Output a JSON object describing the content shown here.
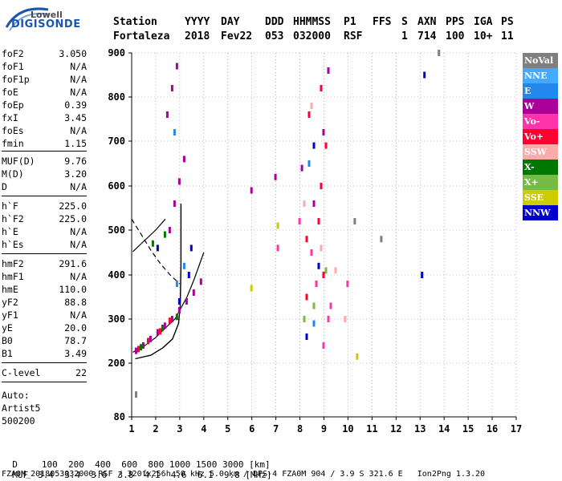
{
  "logo": {
    "brand": "Lowell",
    "product": "DIGISONDE"
  },
  "header": {
    "labels": [
      "Station",
      "YYYY",
      "DAY",
      "DDD",
      "HHMMSS",
      "P1",
      "FFS",
      "S",
      "AXN",
      "PPS",
      "IGA",
      "PS"
    ],
    "values": [
      "Fortaleza",
      "2018",
      "Fev22",
      "053",
      "032000",
      "RSF",
      "",
      "1",
      "714",
      "100",
      "10+",
      "11"
    ]
  },
  "params": {
    "group1": [
      {
        "name": "foF2",
        "value": "3.050"
      },
      {
        "name": "foF1",
        "value": "N/A"
      },
      {
        "name": "foF1p",
        "value": "N/A"
      },
      {
        "name": "foE",
        "value": "N/A"
      },
      {
        "name": "foEp",
        "value": "0.39"
      },
      {
        "name": "fxI",
        "value": "3.45"
      },
      {
        "name": "foEs",
        "value": "N/A"
      },
      {
        "name": "fmin",
        "value": "1.15"
      }
    ],
    "group2": [
      {
        "name": "MUF(D)",
        "value": "9.76"
      },
      {
        "name": "M(D)",
        "value": "3.20"
      },
      {
        "name": "D",
        "value": "N/A"
      }
    ],
    "group3": [
      {
        "name": "h`F",
        "value": "225.0"
      },
      {
        "name": "h`F2",
        "value": "225.0"
      },
      {
        "name": "h`E",
        "value": "N/A"
      },
      {
        "name": "h`Es",
        "value": "N/A"
      }
    ],
    "group4": [
      {
        "name": "hmF2",
        "value": "291.6"
      },
      {
        "name": "hmF1",
        "value": "N/A"
      },
      {
        "name": "hmE",
        "value": "110.0"
      },
      {
        "name": "yF2",
        "value": "88.8"
      },
      {
        "name": "yF1",
        "value": "N/A"
      },
      {
        "name": "yE",
        "value": "20.0"
      },
      {
        "name": "B0",
        "value": "78.7"
      },
      {
        "name": "B1",
        "value": "3.49"
      }
    ],
    "group5": [
      {
        "name": "C-level",
        "value": "22"
      }
    ]
  },
  "auto": {
    "line1": "Auto:",
    "line2": "Artist5",
    "line3": "500200"
  },
  "legend": [
    {
      "label": "NoVal",
      "color": "#7f7f7f"
    },
    {
      "label": "NNE",
      "color": "#44aaff"
    },
    {
      "label": "E",
      "color": "#2288ee"
    },
    {
      "label": "W",
      "color": "#aa0099"
    },
    {
      "label": "Vo-",
      "color": "#ff33aa"
    },
    {
      "label": "Vo+",
      "color": "#ff0033"
    },
    {
      "label": "SSW",
      "color": "#ffaaaa"
    },
    {
      "label": "X-",
      "color": "#007700"
    },
    {
      "label": "X+",
      "color": "#77bb44"
    },
    {
      "label": "SSE",
      "color": "#cccc00"
    },
    {
      "label": "NNW",
      "color": "#0000cc"
    }
  ],
  "bottom": {
    "d_label": "D",
    "d_values": "100  200  400  600  800 1000 1500 3000 [km]",
    "muf_label": "MUF",
    "muf_values": "3.4  3.4  3.6  3.8  4.1  4.6  6.1  9.8 [MHz]",
    "footer": "FZA0M_2018053032000.RSF / 320fx256h 50 kHz 5.0 km / DPS-4 FZA0M 904 / 3.9 S 321.6 E   Ion2Png 1.3.20"
  },
  "chart_data": {
    "type": "scatter",
    "xlim": [
      1,
      17
    ],
    "ylim": [
      80,
      900
    ],
    "x_ticks": [
      "1",
      "2",
      "3",
      "4",
      "5",
      "6",
      "7",
      "8",
      "9",
      "10",
      "11",
      "12",
      "13",
      "14",
      "15",
      "16",
      "17"
    ],
    "y_ticks": [
      "80",
      "200",
      "300",
      "400",
      "500",
      "600",
      "700",
      "800",
      "900"
    ],
    "grid": true,
    "series": [
      {
        "name": "W",
        "color": "#aa0099",
        "points": [
          [
            1.2,
            228
          ],
          [
            1.5,
            240
          ],
          [
            1.8,
            255
          ],
          [
            2.1,
            270
          ],
          [
            2.4,
            285
          ],
          [
            2.7,
            300
          ],
          [
            3.0,
            320
          ],
          [
            3.3,
            340
          ],
          [
            3.6,
            360
          ],
          [
            3.9,
            385
          ],
          [
            2.6,
            500
          ],
          [
            2.8,
            560
          ],
          [
            3.0,
            610
          ],
          [
            3.2,
            660
          ],
          [
            2.5,
            760
          ],
          [
            2.7,
            820
          ],
          [
            2.9,
            870
          ],
          [
            6.0,
            590
          ],
          [
            7.0,
            620
          ],
          [
            8.1,
            640
          ],
          [
            8.6,
            560
          ],
          [
            9.0,
            720
          ],
          [
            9.2,
            860
          ]
        ]
      },
      {
        "name": "Vo+",
        "color": "#ff0033",
        "points": [
          [
            1.3,
            232
          ],
          [
            1.7,
            250
          ],
          [
            2.2,
            272
          ],
          [
            2.6,
            296
          ],
          [
            8.3,
            480
          ],
          [
            8.8,
            520
          ],
          [
            8.9,
            600
          ],
          [
            9.1,
            690
          ],
          [
            8.4,
            760
          ],
          [
            8.9,
            820
          ],
          [
            9.0,
            400
          ],
          [
            8.3,
            350
          ]
        ]
      },
      {
        "name": "Vo-",
        "color": "#ff33aa",
        "points": [
          [
            7.1,
            460
          ],
          [
            8.0,
            520
          ],
          [
            8.5,
            450
          ],
          [
            8.7,
            380
          ],
          [
            9.2,
            300
          ],
          [
            9.0,
            240
          ],
          [
            9.3,
            330
          ],
          [
            10.0,
            380
          ]
        ]
      },
      {
        "name": "X-",
        "color": "#007700",
        "points": [
          [
            1.4,
            236
          ],
          [
            2.3,
            280
          ],
          [
            2.9,
            305
          ],
          [
            1.9,
            470
          ],
          [
            2.4,
            490
          ]
        ]
      },
      {
        "name": "X+",
        "color": "#77bb44",
        "points": [
          [
            8.2,
            300
          ],
          [
            8.6,
            330
          ],
          [
            9.1,
            410
          ]
        ]
      },
      {
        "name": "E",
        "color": "#2288ee",
        "points": [
          [
            2.9,
            380
          ],
          [
            3.2,
            420
          ],
          [
            2.8,
            720
          ],
          [
            8.6,
            290
          ],
          [
            8.4,
            650
          ]
        ]
      },
      {
        "name": "NNW",
        "color": "#0000cc",
        "points": [
          [
            2.1,
            460
          ],
          [
            3.0,
            340
          ],
          [
            3.4,
            400
          ],
          [
            3.5,
            460
          ],
          [
            8.6,
            690
          ],
          [
            8.3,
            260
          ],
          [
            8.8,
            420
          ],
          [
            13.1,
            400
          ],
          [
            13.2,
            850
          ]
        ]
      },
      {
        "name": "SSW",
        "color": "#ffaaaa",
        "points": [
          [
            8.2,
            560
          ],
          [
            8.9,
            460
          ],
          [
            9.5,
            410
          ],
          [
            9.9,
            300
          ],
          [
            8.5,
            780
          ]
        ]
      },
      {
        "name": "SSE",
        "color": "#cccc00",
        "points": [
          [
            7.1,
            510
          ],
          [
            10.4,
            215
          ],
          [
            6.0,
            370
          ]
        ]
      },
      {
        "name": "NoVal",
        "color": "#7f7f7f",
        "points": [
          [
            11.4,
            480
          ],
          [
            13.8,
            900
          ],
          [
            10.3,
            520
          ],
          [
            1.2,
            130
          ]
        ]
      }
    ],
    "profile_curve": [
      [
        1.15,
        210
      ],
      [
        1.8,
        218
      ],
      [
        2.3,
        235
      ],
      [
        2.7,
        255
      ],
      [
        2.95,
        290
      ],
      [
        3.02,
        330
      ],
      [
        3.05,
        420
      ],
      [
        3.05,
        560
      ]
    ],
    "dashed_curve": [
      [
        1.0,
        525
      ],
      [
        1.4,
        490
      ],
      [
        1.8,
        455
      ],
      [
        2.2,
        425
      ],
      [
        2.6,
        400
      ],
      [
        3.0,
        380
      ]
    ],
    "o_trace_fit": [
      [
        1.05,
        225
      ],
      [
        1.5,
        238
      ],
      [
        2.0,
        258
      ],
      [
        2.5,
        285
      ],
      [
        2.8,
        300
      ],
      [
        3.0,
        320
      ],
      [
        3.3,
        350
      ],
      [
        3.6,
        390
      ],
      [
        4.0,
        450
      ]
    ],
    "f2_lower_fit": [
      [
        1.05,
        452
      ],
      [
        1.5,
        475
      ],
      [
        2.0,
        500
      ],
      [
        2.4,
        525
      ]
    ]
  }
}
